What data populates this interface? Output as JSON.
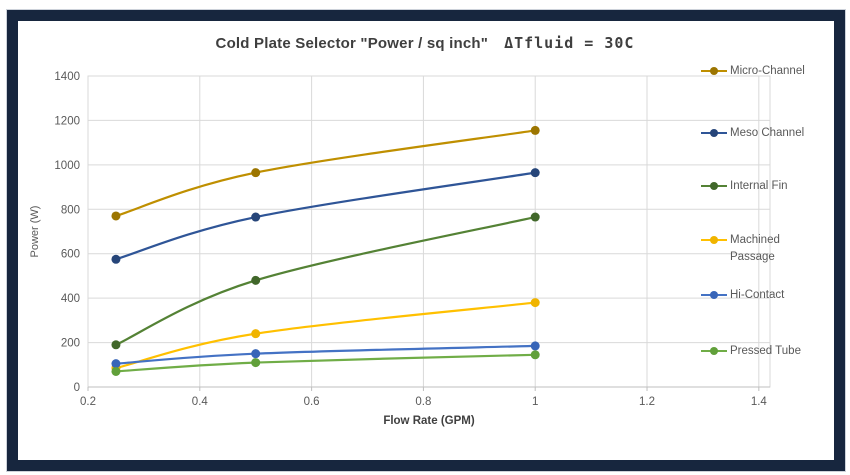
{
  "frame": {
    "border_color": "#17263E"
  },
  "title": {
    "main": "Cold Plate Selector  \"Power / sq inch\"",
    "delta": "ΔTfluid = 30C"
  },
  "colors": {
    "grid": "#D9D9D9",
    "axis_line": "#BFBFBF",
    "tick_text": "#595959",
    "axis_title": "#404040",
    "title_text": "#3F3F3F"
  },
  "chart_data": {
    "type": "line",
    "title": "Cold Plate Selector \"Power / sq inch\"  ΔTfluid = 30C",
    "xlabel": "Flow Rate (GPM)",
    "ylabel": "Power (W)",
    "x": [
      0.25,
      0.5,
      1.0
    ],
    "series": [
      {
        "name": "Micro-Channel",
        "color": "#BF8F00",
        "marker_color": "#9C7500",
        "values": [
          770,
          965,
          1155
        ]
      },
      {
        "name": "Meso Channel",
        "color": "#2F5597",
        "marker_color": "#264579",
        "values": [
          575,
          765,
          965
        ]
      },
      {
        "name": "Internal Fin",
        "color": "#548235",
        "marker_color": "#41672A",
        "values": [
          190,
          480,
          765
        ]
      },
      {
        "name": "Machined Passage",
        "color": "#FFC000",
        "marker_color": "#F0B400",
        "values": [
          85,
          240,
          380
        ]
      },
      {
        "name": "Hi-Contact",
        "color": "#4472C4",
        "marker_color": "#3765B8",
        "values": [
          105,
          150,
          185
        ]
      },
      {
        "name": "Pressed Tube",
        "color": "#70AD47",
        "marker_color": "#61A03A",
        "values": [
          70,
          110,
          145
        ]
      }
    ],
    "xlim": [
      0.2,
      1.42
    ],
    "ylim": [
      0,
      1400
    ],
    "x_ticks": [
      0.2,
      0.4,
      0.6,
      0.8,
      1.0,
      1.2,
      1.4
    ],
    "x_tick_labels": [
      "0.2",
      "0.4",
      "0.6",
      "0.8",
      "1",
      "1.2",
      "1.4"
    ],
    "y_ticks": [
      0,
      200,
      400,
      600,
      800,
      1000,
      1200,
      1400
    ],
    "y_tick_labels": [
      "0",
      "200",
      "400",
      "600",
      "800",
      "1000",
      "1200",
      "1400"
    ],
    "grid": true,
    "legend_position": "right",
    "smooth_lines": true
  }
}
